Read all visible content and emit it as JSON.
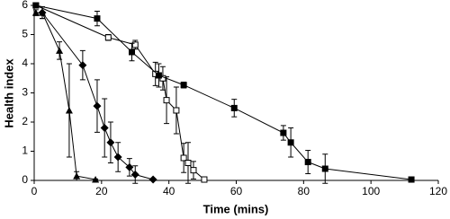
{
  "chart_data": {
    "type": "line",
    "x_label": "Time (mins)",
    "y_label": "Health index",
    "xlim": [
      0,
      120
    ],
    "xticks": [
      0,
      20,
      40,
      60,
      80,
      100,
      120
    ],
    "ylim": [
      0,
      6
    ],
    "yticks": [
      0,
      1,
      2,
      3,
      4,
      5,
      6
    ],
    "series": [
      {
        "marker": "triangle",
        "color": "#000000",
        "x": [
          0.5,
          2.4,
          7.5,
          10.4,
          12.6,
          18.2
        ],
        "values": [
          5.75,
          5.75,
          4.45,
          2.4,
          0.15,
          0.03
        ],
        "errors": [
          0.1,
          0.2,
          0.3,
          1.6,
          0.15,
          0.02
        ]
      },
      {
        "marker": "diamond",
        "color": "#000000",
        "x": [
          2.4,
          14.4,
          18.7,
          20.9,
          22.7,
          24.9,
          28.3,
          30.0,
          35.3
        ],
        "values": [
          5.75,
          3.95,
          2.55,
          1.8,
          1.3,
          0.8,
          0.45,
          0.2,
          0.03
        ],
        "errors": [
          0.2,
          0.5,
          0.9,
          1.0,
          0.7,
          0.5,
          0.3,
          0.3,
          0.02
        ]
      },
      {
        "marker": "square-open",
        "color": "#000000",
        "x": [
          0.5,
          22.0,
          30.0,
          36.0,
          38.2,
          39.3,
          42.2,
          44.4,
          45.7,
          47.3,
          50.5
        ],
        "values": [
          6.0,
          4.9,
          4.65,
          3.65,
          3.5,
          2.75,
          2.4,
          0.77,
          0.6,
          0.35,
          0.03
        ],
        "errors": [
          0.05,
          0.1,
          0.15,
          0.4,
          0.4,
          0.8,
          0.8,
          0.5,
          0.7,
          0.3,
          0.02
        ]
      },
      {
        "marker": "square",
        "color": "#000000",
        "x": [
          0.5,
          18.7,
          29.0,
          37.0,
          44.4,
          59.4,
          74.0,
          76.2,
          81.3,
          86.4,
          112.0
        ],
        "values": [
          6.0,
          5.55,
          4.4,
          3.6,
          3.27,
          2.48,
          1.63,
          1.3,
          0.63,
          0.4,
          0.03
        ],
        "errors": [
          0.05,
          0.25,
          0.3,
          0.4,
          0.1,
          0.3,
          0.25,
          0.5,
          0.4,
          0.5,
          0.02
        ]
      }
    ]
  }
}
